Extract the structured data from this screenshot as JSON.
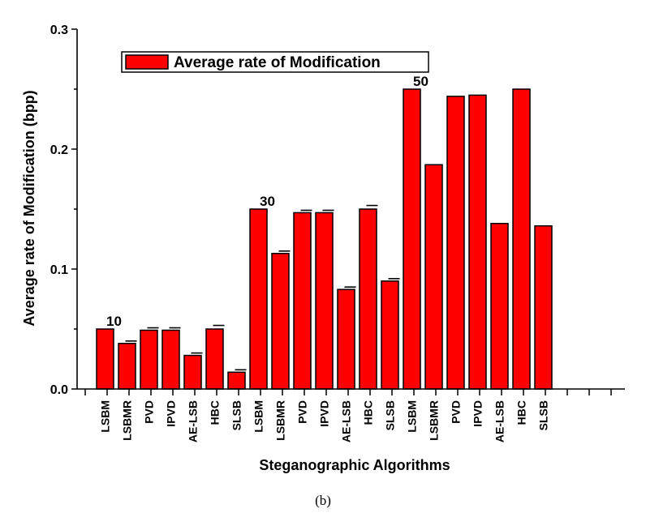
{
  "chart_data": {
    "type": "bar",
    "ylabel": "Average rate of Modification (bpp)",
    "xlabel": "Steganographic Algorithms",
    "legend": {
      "label": "Average rate of Modification",
      "position": "top-left"
    },
    "ylim": [
      0.0,
      0.3
    ],
    "yticks": [
      "0.0",
      "0.1",
      "0.2",
      "0.3"
    ],
    "bar_color": "#ff0000",
    "categories": [
      "LSBM",
      "LSBMR",
      "PVD",
      "IPVD",
      "AE-LSB",
      "HBC",
      "SLSB",
      "LSBM",
      "LSBMR",
      "PVD",
      "IPVD",
      "AE-LSB",
      "HBC",
      "SLSB",
      "LSBM",
      "LSBMR",
      "PVD",
      "IPVD",
      "AE-LSB",
      "HBC",
      "SLSB"
    ],
    "values": [
      0.05,
      0.038,
      0.049,
      0.049,
      0.028,
      0.05,
      0.014,
      0.15,
      0.113,
      0.147,
      0.147,
      0.083,
      0.15,
      0.09,
      0.25,
      0.187,
      0.244,
      0.245,
      0.138,
      0.25,
      0.136
    ],
    "error_caps": [
      null,
      0.04,
      0.051,
      0.051,
      0.03,
      0.053,
      0.016,
      null,
      0.115,
      0.149,
      0.149,
      0.085,
      0.153,
      0.092,
      null,
      null,
      null,
      null,
      null,
      null,
      null
    ],
    "annotations": [
      {
        "text": "10",
        "index": 0
      },
      {
        "text": "30",
        "index": 7
      },
      {
        "text": "50",
        "index": 14
      }
    ]
  },
  "caption": "(b)"
}
